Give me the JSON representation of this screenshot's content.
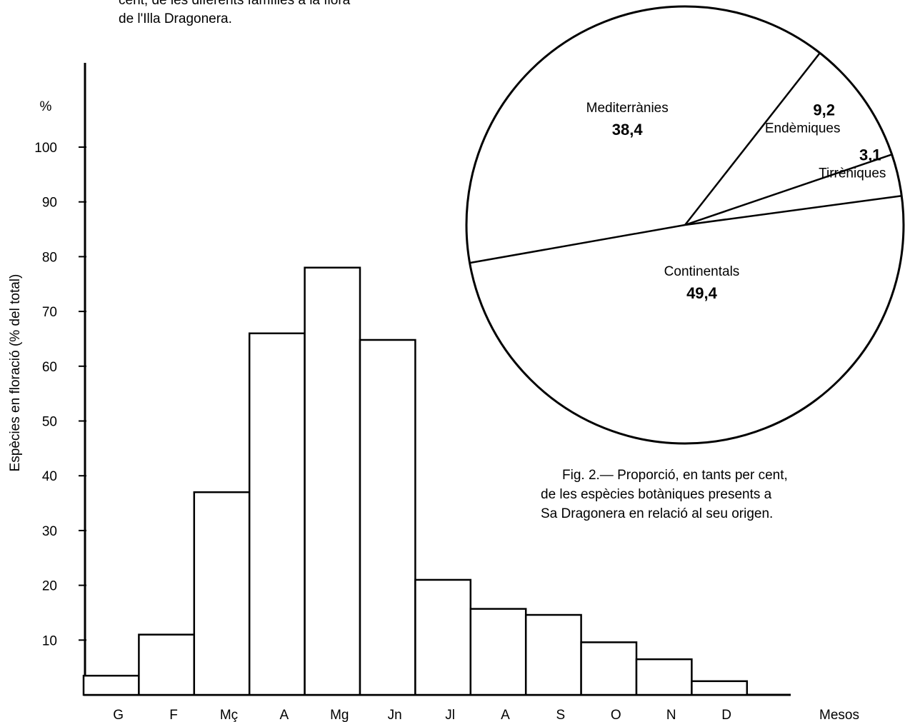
{
  "top_caption": {
    "lines": [
      "cent, de les diferents famílies a la flora",
      "de l'Illa Dragonera."
    ]
  },
  "fig2_caption": {
    "lines": [
      "Fig. 2.— Proporció, en tants per cent,",
      "de les espècies botàniques presents a",
      "Sa Dragonera en relació al seu origen."
    ]
  },
  "chart_data": [
    {
      "type": "bar",
      "title": "",
      "xlabel": "Mesos",
      "ylabel": "Espècies en floració (% del total)",
      "ylabel_unit": "%",
      "categories": [
        "G",
        "F",
        "Mç",
        "A",
        "Mg",
        "Jn",
        "Jl",
        "A",
        "S",
        "O",
        "N",
        "D"
      ],
      "values": [
        3.5,
        11,
        37,
        66,
        78,
        64.8,
        21,
        15.7,
        14.6,
        9.6,
        6.5,
        2.5
      ],
      "yticks": [
        10,
        20,
        30,
        40,
        50,
        60,
        70,
        80,
        90,
        100
      ],
      "ylim": [
        0,
        110
      ],
      "grid": false,
      "legend": "none"
    },
    {
      "type": "pie",
      "title": "",
      "slices": [
        {
          "label": "Mediterrànies",
          "value": 38.4,
          "value_text": "38,4"
        },
        {
          "label": "Endèmiques",
          "value": 9.2,
          "value_text": "9,2"
        },
        {
          "label": "Tirrèniques",
          "value": 3.1,
          "value_text": "3,1"
        },
        {
          "label": "Continentals",
          "value": 49.4,
          "value_text": "49,4"
        }
      ],
      "fill": "#ffffff",
      "stroke": "#000000"
    }
  ]
}
